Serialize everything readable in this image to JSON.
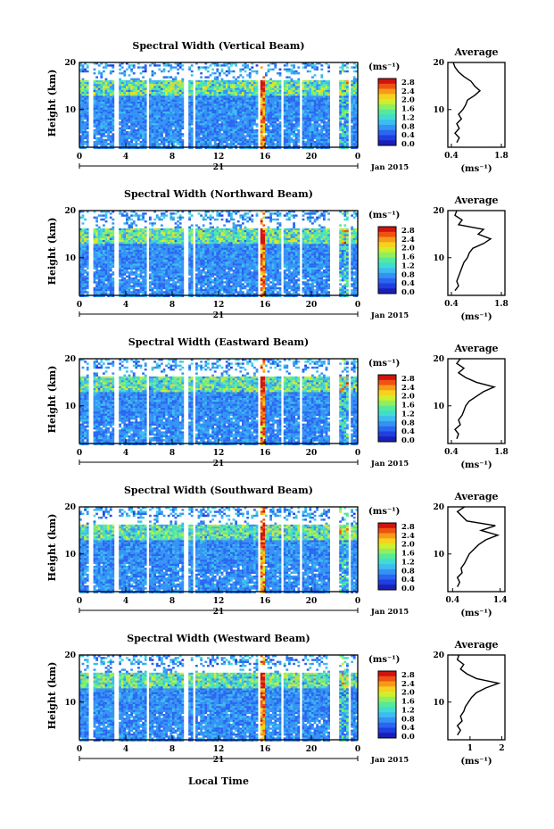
{
  "figure": {
    "x_axis_label": "Local Time"
  },
  "chart_data": [
    {
      "type": "heatmap",
      "title": "Spectral Width (Vertical Beam)",
      "ylabel": "Height (km)",
      "yticks": [
        "20",
        "10"
      ],
      "ylim": [
        2,
        20
      ],
      "xticks": [
        "0",
        "4",
        "8",
        "12",
        "16",
        "20",
        "0"
      ],
      "xlim": [
        0,
        24
      ],
      "day_label": "21",
      "date_label": "Jan 2015",
      "colorbar": {
        "unit": "(ms⁻¹)",
        "ticks": [
          "2.8",
          "2.4",
          "2.0",
          "1.6",
          "1.2",
          "0.8",
          "0.4",
          "0.0"
        ],
        "range": [
          0,
          3.0
        ]
      },
      "avg": {
        "title": "Average",
        "xlabel": "(ms⁻¹)",
        "xticks": [
          "0.4",
          "1.8"
        ],
        "xlim": [
          0.3,
          1.9
        ],
        "yticks": [
          "20",
          "10"
        ],
        "profile": [
          [
            0.55,
            3
          ],
          [
            0.62,
            4
          ],
          [
            0.5,
            5
          ],
          [
            0.62,
            6
          ],
          [
            0.55,
            7
          ],
          [
            0.68,
            8
          ],
          [
            0.6,
            9
          ],
          [
            0.72,
            10
          ],
          [
            0.8,
            11
          ],
          [
            0.85,
            12
          ],
          [
            1.05,
            13
          ],
          [
            1.2,
            14
          ],
          [
            1.05,
            15
          ],
          [
            0.95,
            16
          ],
          [
            0.75,
            17
          ],
          [
            0.6,
            18
          ],
          [
            0.5,
            19
          ],
          [
            0.45,
            20
          ]
        ]
      }
    },
    {
      "type": "heatmap",
      "title": "Spectral Width (Northward Beam)",
      "ylabel": "Height (km)",
      "yticks": [
        "20",
        "10"
      ],
      "ylim": [
        2,
        20
      ],
      "xticks": [
        "0",
        "4",
        "8",
        "12",
        "16",
        "20",
        "0"
      ],
      "xlim": [
        0,
        24
      ],
      "day_label": "21",
      "date_label": "Jan 2015",
      "colorbar": {
        "unit": "(ms⁻¹)",
        "ticks": [
          "2.8",
          "2.4",
          "2.0",
          "1.6",
          "1.2",
          "0.8",
          "0.4",
          "0.0"
        ],
        "range": [
          0,
          3.0
        ]
      },
      "avg": {
        "title": "Average",
        "xlabel": "(ms⁻¹)",
        "xticks": [
          "0.4",
          "1.8"
        ],
        "xlim": [
          0.3,
          1.9
        ],
        "yticks": [
          "20",
          "10"
        ],
        "profile": [
          [
            0.5,
            3
          ],
          [
            0.6,
            4
          ],
          [
            0.55,
            5
          ],
          [
            0.6,
            6
          ],
          [
            0.65,
            7
          ],
          [
            0.7,
            8
          ],
          [
            0.75,
            9
          ],
          [
            0.85,
            10
          ],
          [
            0.9,
            11
          ],
          [
            1.0,
            12
          ],
          [
            1.3,
            13
          ],
          [
            1.5,
            14
          ],
          [
            1.15,
            15
          ],
          [
            1.3,
            16
          ],
          [
            0.6,
            17
          ],
          [
            0.7,
            18
          ],
          [
            0.5,
            19
          ],
          [
            0.55,
            20
          ]
        ]
      }
    },
    {
      "type": "heatmap",
      "title": "Spectral Width (Eastward Beam)",
      "ylabel": "Height (km)",
      "yticks": [
        "20",
        "10"
      ],
      "ylim": [
        2,
        20
      ],
      "xticks": [
        "0",
        "4",
        "8",
        "12",
        "16",
        "20",
        "0"
      ],
      "xlim": [
        0,
        24
      ],
      "day_label": "21",
      "date_label": "Jan 2015",
      "colorbar": {
        "unit": "(ms⁻¹)",
        "ticks": [
          "2.8",
          "2.4",
          "2.0",
          "1.6",
          "1.2",
          "0.8",
          "0.4",
          "0.0"
        ],
        "range": [
          0,
          3.0
        ]
      },
      "avg": {
        "title": "Average",
        "xlabel": "(ms⁻¹)",
        "xticks": [
          "0.4",
          "1.8"
        ],
        "xlim": [
          0.3,
          1.9
        ],
        "yticks": [
          "20",
          "10"
        ],
        "profile": [
          [
            0.55,
            3
          ],
          [
            0.6,
            4
          ],
          [
            0.5,
            5
          ],
          [
            0.65,
            6
          ],
          [
            0.6,
            7
          ],
          [
            0.7,
            8
          ],
          [
            0.75,
            9
          ],
          [
            0.8,
            10
          ],
          [
            0.9,
            11
          ],
          [
            1.1,
            12
          ],
          [
            1.3,
            13
          ],
          [
            1.6,
            14
          ],
          [
            1.1,
            15
          ],
          [
            0.8,
            16
          ],
          [
            0.6,
            17
          ],
          [
            0.75,
            18
          ],
          [
            0.55,
            19
          ],
          [
            0.65,
            20
          ]
        ]
      }
    },
    {
      "type": "heatmap",
      "title": "Spectral Width (Southward Beam)",
      "ylabel": "Height (km)",
      "yticks": [
        "20",
        "10"
      ],
      "ylim": [
        2,
        20
      ],
      "xticks": [
        "0",
        "4",
        "8",
        "12",
        "16",
        "20",
        "0"
      ],
      "xlim": [
        0,
        24
      ],
      "day_label": "21",
      "date_label": "Jan 2015",
      "colorbar": {
        "unit": "(ms⁻¹)",
        "ticks": [
          "2.8",
          "2.4",
          "2.0",
          "1.6",
          "1.2",
          "0.8",
          "0.4",
          "0.0"
        ],
        "range": [
          0,
          3.0
        ]
      },
      "avg": {
        "title": "Average",
        "xlabel": "(ms⁻¹)",
        "xticks": [
          "0.4",
          "1.4"
        ],
        "xlim": [
          0.3,
          1.5
        ],
        "yticks": [
          "20",
          "10"
        ],
        "profile": [
          [
            0.5,
            3
          ],
          [
            0.55,
            4
          ],
          [
            0.5,
            5
          ],
          [
            0.6,
            6
          ],
          [
            0.58,
            7
          ],
          [
            0.65,
            8
          ],
          [
            0.7,
            9
          ],
          [
            0.75,
            10
          ],
          [
            0.85,
            11
          ],
          [
            0.95,
            12
          ],
          [
            1.1,
            13
          ],
          [
            1.35,
            14
          ],
          [
            1.0,
            15
          ],
          [
            1.3,
            16
          ],
          [
            0.7,
            17
          ],
          [
            0.6,
            18
          ],
          [
            0.5,
            19
          ],
          [
            0.65,
            20
          ]
        ]
      }
    },
    {
      "type": "heatmap",
      "title": "Spectral Width (Westward Beam)",
      "ylabel": "Height (km)",
      "yticks": [
        "20",
        "10"
      ],
      "ylim": [
        2,
        20
      ],
      "xticks": [
        "0",
        "4",
        "8",
        "12",
        "16",
        "20",
        "0"
      ],
      "xlim": [
        0,
        24
      ],
      "day_label": "21",
      "date_label": "Jan 2015",
      "colorbar": {
        "unit": "(ms⁻¹)",
        "ticks": [
          "2.8",
          "2.4",
          "2.0",
          "1.6",
          "1.2",
          "0.8",
          "0.4",
          "0.0"
        ],
        "range": [
          0,
          3.0
        ]
      },
      "avg": {
        "title": "Average",
        "xlabel": "(ms⁻¹)",
        "xticks": [
          "1",
          "2"
        ],
        "xlim": [
          0.3,
          2.1
        ],
        "yticks": [
          "20",
          "10"
        ],
        "profile": [
          [
            0.6,
            3
          ],
          [
            0.7,
            4
          ],
          [
            0.6,
            5
          ],
          [
            0.75,
            6
          ],
          [
            0.7,
            7
          ],
          [
            0.8,
            8
          ],
          [
            0.85,
            9
          ],
          [
            0.95,
            10
          ],
          [
            1.05,
            11
          ],
          [
            1.2,
            12
          ],
          [
            1.5,
            13
          ],
          [
            1.9,
            14
          ],
          [
            1.2,
            15
          ],
          [
            0.9,
            16
          ],
          [
            0.7,
            17
          ],
          [
            0.8,
            18
          ],
          [
            0.6,
            19
          ],
          [
            0.65,
            20
          ]
        ]
      }
    }
  ]
}
